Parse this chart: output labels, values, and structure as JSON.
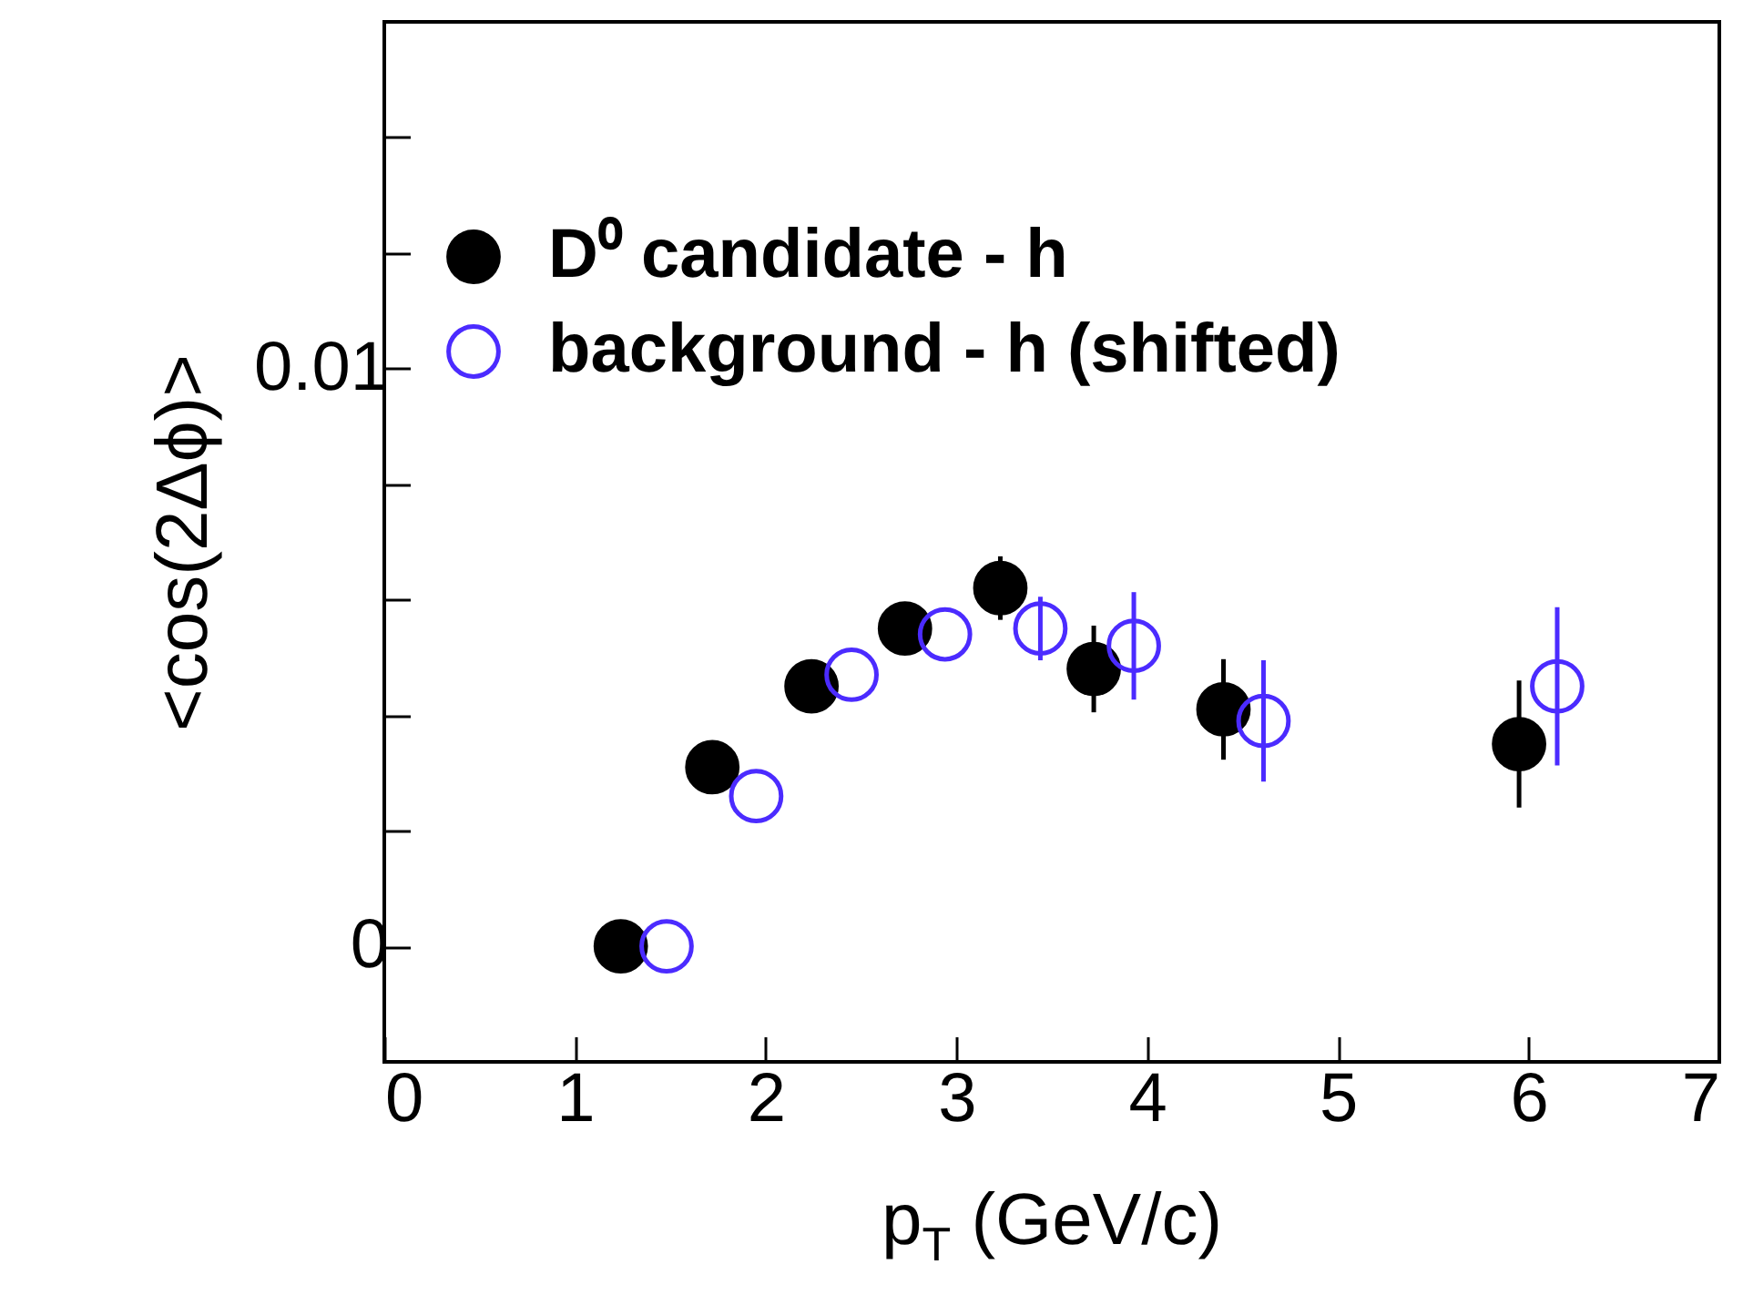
{
  "chart_data": {
    "type": "scatter",
    "xlabel": "p$_{T}$ (GeV/c)",
    "ylabel": "<cos(2Δϕ)>",
    "xlim": [
      0,
      7
    ],
    "xticks": [
      0,
      1,
      2,
      3,
      4,
      5,
      6,
      7
    ],
    "ylim": [
      -0.002,
      0.016
    ],
    "yticks": [
      0,
      {
        "value": 0.002,
        "label": null
      },
      {
        "value": 0.004,
        "label": null
      },
      {
        "value": 0.006,
        "label": null
      },
      {
        "value": 0.008,
        "label": null
      },
      0.01,
      {
        "value": 0.012,
        "label": null
      },
      {
        "value": 0.014,
        "label": null
      }
    ],
    "legend": "top left",
    "marker": "circle",
    "grid": false,
    "series": [
      {
        "name": "D⁰ candidate - h",
        "color": "#000000",
        "x": [
          1.24,
          1.72,
          2.24,
          2.73,
          3.23,
          3.72,
          4.4,
          5.95
        ],
        "values": [
          0.0,
          0.0031,
          0.0045,
          0.0055,
          0.0062,
          0.0048,
          0.0041,
          0.0035
        ],
        "errors": [
          null,
          null,
          null,
          null,
          0.00055,
          0.00075,
          0.00087,
          0.0011
        ]
      },
      {
        "name": "background - h (shifted)",
        "color": "#4b2bff",
        "x": [
          1.48,
          1.95,
          2.45,
          2.94,
          3.44,
          3.93,
          4.61,
          6.15
        ],
        "values": [
          0.0,
          0.0026,
          0.0047,
          0.0054,
          0.0055,
          0.0052,
          0.0039,
          0.0045
        ],
        "errors": [
          null,
          null,
          null,
          null,
          0.00055,
          0.00093,
          0.00105,
          0.00137
        ]
      }
    ]
  }
}
